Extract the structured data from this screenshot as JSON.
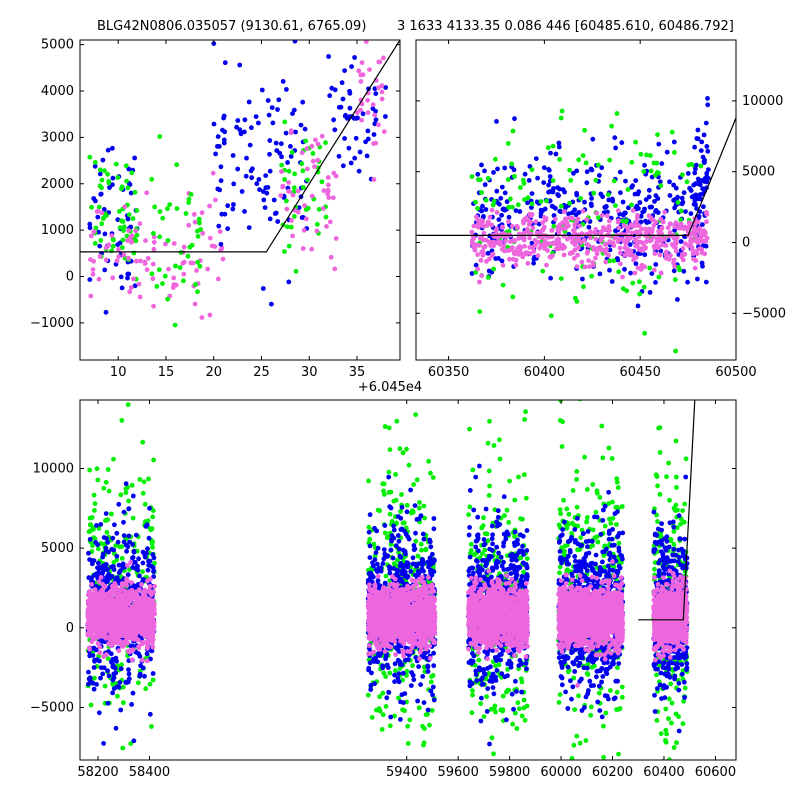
{
  "figure_title_left": "BLG42N0806.035057 (9130.61, 6765.09)",
  "figure_title_right": "3 1633 4133.35 0.086 446 [60485.610, 60486.792]",
  "colors": {
    "blue": "#0000ee",
    "green": "#00ee00",
    "pink": "#ee66dd",
    "line": "#000000"
  },
  "chart_data": [
    {
      "type": "scatter",
      "name": "top-left",
      "xlim": [
        6,
        39.5
      ],
      "ylim": [
        -1800,
        5100
      ],
      "x_offset_label": "+6.045e4",
      "xticks": [
        10,
        15,
        20,
        25,
        30,
        35
      ],
      "yticks": [
        -1000,
        0,
        1000,
        2000,
        3000,
        4000,
        5000
      ],
      "ytick_side": "left",
      "model_line": [
        [
          6,
          530
        ],
        [
          25.5,
          530
        ],
        [
          39.5,
          5100
        ]
      ],
      "clusters": [
        {
          "color": "blue",
          "xr": [
            7,
            12
          ],
          "yc": 1400,
          "ys": 900,
          "n": 55
        },
        {
          "color": "green",
          "xr": [
            7,
            12
          ],
          "yc": 1300,
          "ys": 600,
          "n": 60
        },
        {
          "color": "pink",
          "xr": [
            7,
            21
          ],
          "yc": 500,
          "ys": 600,
          "n": 90
        },
        {
          "color": "green",
          "xr": [
            13,
            19
          ],
          "yc": 900,
          "ys": 800,
          "n": 40
        },
        {
          "color": "blue",
          "xr": [
            20,
            30
          ],
          "yc": 2300,
          "ys": 1000,
          "n": 110
        },
        {
          "color": "green",
          "xr": [
            27,
            32
          ],
          "yc": 1800,
          "ys": 700,
          "n": 40
        },
        {
          "color": "pink",
          "xr": [
            27,
            33
          ],
          "yc": 1700,
          "ys": 600,
          "n": 50
        },
        {
          "color": "blue",
          "xr": [
            32,
            38
          ],
          "yc": 3500,
          "ys": 1000,
          "n": 50
        },
        {
          "color": "pink",
          "xr": [
            35,
            38
          ],
          "yc": 3800,
          "ys": 600,
          "n": 30
        }
      ]
    },
    {
      "type": "scatter",
      "name": "top-right",
      "xlim": [
        60333,
        60500
      ],
      "ylim": [
        -8300,
        14300
      ],
      "xticks": [
        60350,
        60400,
        60450,
        60500
      ],
      "yticks": [
        -5000,
        0,
        5000,
        10000
      ],
      "ytick_side": "right",
      "model_line": [
        [
          60333,
          500
        ],
        [
          60475,
          500
        ],
        [
          60500,
          8800
        ]
      ],
      "clusters": [
        {
          "color": "blue",
          "xr": [
            60362,
            60485
          ],
          "yc": 1800,
          "ys": 2200,
          "n": 420
        },
        {
          "color": "green",
          "xr": [
            60362,
            60485
          ],
          "yc": 1500,
          "ys": 3500,
          "n": 160
        },
        {
          "color": "pink",
          "xr": [
            60362,
            60485
          ],
          "yc": 200,
          "ys": 900,
          "n": 520
        },
        {
          "color": "blue",
          "xr": [
            60478,
            60486
          ],
          "yc": 5500,
          "ys": 1800,
          "n": 40
        }
      ]
    },
    {
      "type": "scatter",
      "name": "bottom",
      "xlim": [
        58130,
        60680
      ],
      "ylim": [
        -8300,
        14300
      ],
      "xticks": [
        58200,
        58400,
        59400,
        59600,
        59800,
        60000,
        60200,
        60400,
        60600
      ],
      "yticks": [
        -5000,
        0,
        5000,
        10000
      ],
      "ytick_side": "left",
      "model_line": [
        [
          60300,
          500
        ],
        [
          60475,
          500
        ],
        [
          60520,
          14300
        ]
      ],
      "groups": [
        {
          "xr": [
            58160,
            58420
          ],
          "n": 260
        },
        {
          "xr": [
            59250,
            59510
          ],
          "n": 320
        },
        {
          "xr": [
            59640,
            59870
          ],
          "n": 280
        },
        {
          "xr": [
            59990,
            60240
          ],
          "n": 320
        },
        {
          "xr": [
            60360,
            60490
          ],
          "n": 200
        }
      ]
    }
  ]
}
